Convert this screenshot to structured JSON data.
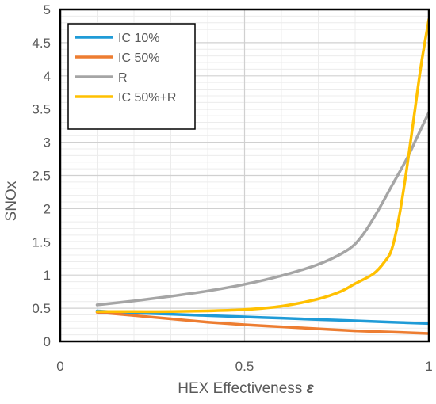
{
  "chart_data": {
    "type": "line",
    "title": "",
    "xlabel": "HEX Effectiveness",
    "xlabel_symbol": "ε",
    "ylabel": "SNOx",
    "xlim": [
      0,
      1
    ],
    "ylim": [
      0,
      5
    ],
    "x_ticks": [
      0,
      0.5,
      1
    ],
    "x_tick_labels": [
      "0",
      "0.5",
      "1"
    ],
    "y_ticks": [
      0,
      0.5,
      1,
      1.5,
      2,
      2.5,
      3,
      3.5,
      4,
      4.5,
      5
    ],
    "y_tick_labels": [
      "0",
      "0.5",
      "1",
      "1.5",
      "2",
      "2.5",
      "3",
      "3.5",
      "4",
      "4.5",
      "5"
    ],
    "grid": true,
    "legend": "top-left",
    "series": [
      {
        "name": "IC 10%",
        "color": "#1f9bd7",
        "points": [
          [
            0.1,
            0.46
          ],
          [
            0.2,
            0.43
          ],
          [
            0.3,
            0.41
          ],
          [
            0.4,
            0.39
          ],
          [
            0.5,
            0.37
          ],
          [
            0.6,
            0.35
          ],
          [
            0.7,
            0.33
          ],
          [
            0.8,
            0.31
          ],
          [
            0.9,
            0.29
          ],
          [
            1.0,
            0.27
          ]
        ]
      },
      {
        "name": "IC 50%",
        "color": "#ed7d31",
        "points": [
          [
            0.1,
            0.44
          ],
          [
            0.2,
            0.39
          ],
          [
            0.3,
            0.34
          ],
          [
            0.4,
            0.29
          ],
          [
            0.5,
            0.25
          ],
          [
            0.6,
            0.22
          ],
          [
            0.7,
            0.19
          ],
          [
            0.8,
            0.16
          ],
          [
            0.9,
            0.14
          ],
          [
            1.0,
            0.12
          ]
        ]
      },
      {
        "name": "R",
        "color": "#a5a5a5",
        "points": [
          [
            0.1,
            0.55
          ],
          [
            0.2,
            0.61
          ],
          [
            0.3,
            0.68
          ],
          [
            0.4,
            0.76
          ],
          [
            0.5,
            0.86
          ],
          [
            0.6,
            0.99
          ],
          [
            0.7,
            1.16
          ],
          [
            0.78,
            1.38
          ],
          [
            0.82,
            1.6
          ],
          [
            0.86,
            1.95
          ],
          [
            0.9,
            2.35
          ],
          [
            0.94,
            2.75
          ],
          [
            0.97,
            3.1
          ],
          [
            1.0,
            3.45
          ]
        ]
      },
      {
        "name": "IC 50%+R",
        "color": "#ffc000",
        "points": [
          [
            0.1,
            0.45
          ],
          [
            0.2,
            0.45
          ],
          [
            0.3,
            0.45
          ],
          [
            0.4,
            0.46
          ],
          [
            0.5,
            0.48
          ],
          [
            0.6,
            0.53
          ],
          [
            0.7,
            0.64
          ],
          [
            0.76,
            0.75
          ],
          [
            0.8,
            0.87
          ],
          [
            0.85,
            1.02
          ],
          [
            0.88,
            1.2
          ],
          [
            0.9,
            1.4
          ],
          [
            0.92,
            1.9
          ],
          [
            0.94,
            2.6
          ],
          [
            0.96,
            3.4
          ],
          [
            0.98,
            4.2
          ],
          [
            1.0,
            4.85
          ]
        ]
      }
    ]
  }
}
